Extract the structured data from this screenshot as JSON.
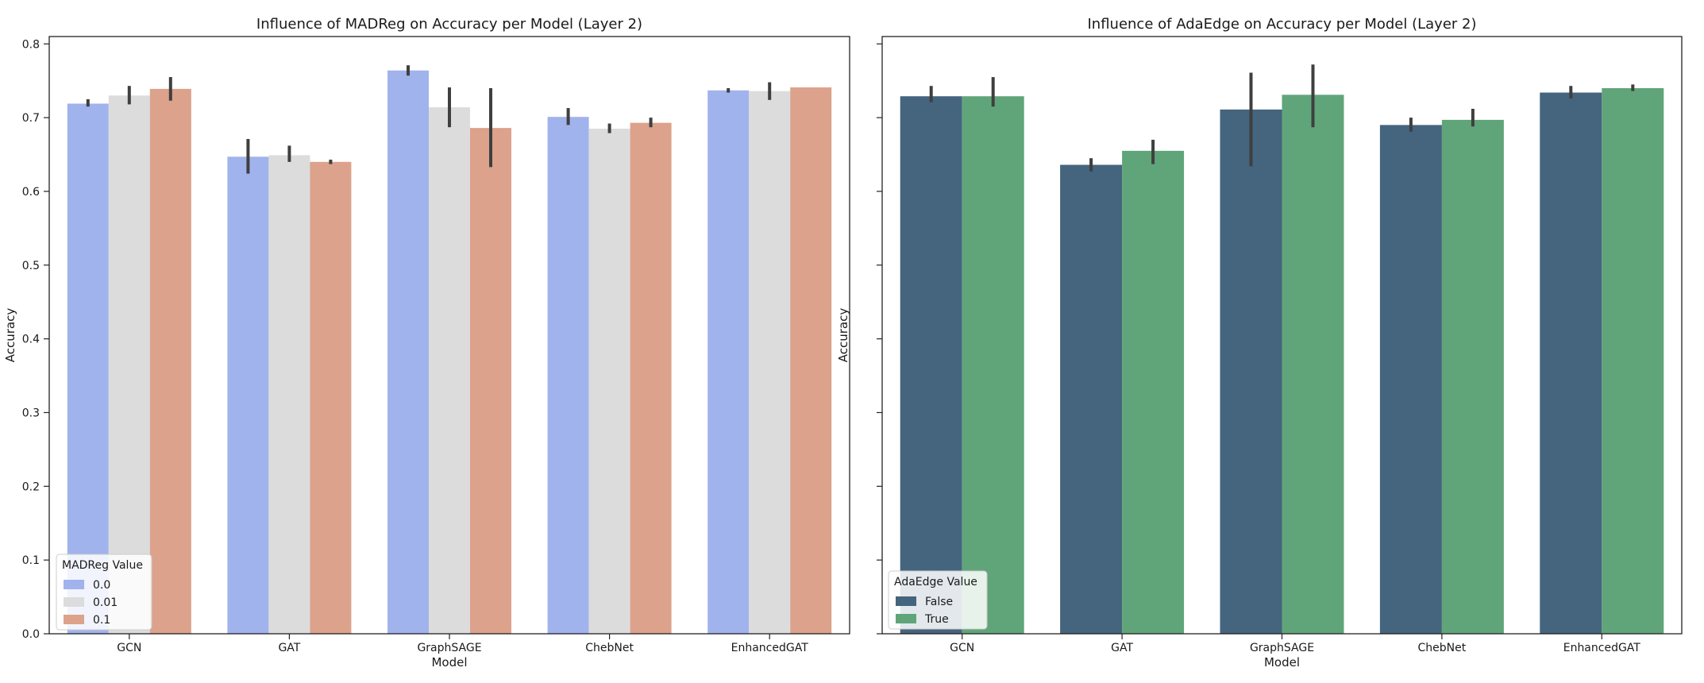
{
  "chart_data": [
    {
      "type": "bar",
      "title": "Influence of MADReg on Accuracy per Model (Layer 2)",
      "xlabel": "Model",
      "ylabel": "Accuracy",
      "ylim": [
        0,
        0.81
      ],
      "yticks": [
        "0.0",
        "0.1",
        "0.2",
        "0.3",
        "0.4",
        "0.5",
        "0.6",
        "0.7",
        "0.8"
      ],
      "categories": [
        "GCN",
        "GAT",
        "GraphSAGE",
        "ChebNet",
        "EnhancedGAT"
      ],
      "legend_title": "MADReg Value",
      "legend_position": "lower-left",
      "series": [
        {
          "name": "0.0",
          "color": "#a1b3ec",
          "values": [
            0.719,
            0.647,
            0.764,
            0.701,
            0.737
          ],
          "err_low": [
            0.715,
            0.624,
            0.757,
            0.69,
            0.734
          ],
          "err_high": [
            0.725,
            0.671,
            0.771,
            0.713,
            0.74
          ]
        },
        {
          "name": "0.01",
          "color": "#dcdcdc",
          "values": [
            0.73,
            0.649,
            0.714,
            0.685,
            0.736
          ],
          "err_low": [
            0.718,
            0.64,
            0.687,
            0.679,
            0.724
          ],
          "err_high": [
            0.743,
            0.662,
            0.741,
            0.692,
            0.748
          ]
        },
        {
          "name": "0.1",
          "color": "#dca28c",
          "values": [
            0.739,
            0.64,
            0.686,
            0.693,
            0.741
          ],
          "err_low": [
            0.723,
            0.637,
            0.633,
            0.687,
            0.741
          ],
          "err_high": [
            0.755,
            0.643,
            0.74,
            0.7,
            0.741
          ]
        }
      ]
    },
    {
      "type": "bar",
      "title": "Influence of AdaEdge on Accuracy per Model (Layer 2)",
      "xlabel": "Model",
      "ylabel": "Accuracy",
      "ylim": [
        0,
        0.81
      ],
      "yticks": [
        "",
        "",
        "",
        "",
        "",
        "",
        "",
        "",
        ""
      ],
      "categories": [
        "GCN",
        "GAT",
        "GraphSAGE",
        "ChebNet",
        "EnhancedGAT"
      ],
      "legend_title": "AdaEdge Value",
      "legend_position": "lower-left",
      "series": [
        {
          "name": "False",
          "color": "#45647e",
          "values": [
            0.729,
            0.636,
            0.711,
            0.69,
            0.734
          ],
          "err_low": [
            0.721,
            0.627,
            0.634,
            0.681,
            0.726
          ],
          "err_high": [
            0.743,
            0.645,
            0.761,
            0.7,
            0.743
          ]
        },
        {
          "name": "True",
          "color": "#60a57a",
          "values": [
            0.729,
            0.655,
            0.731,
            0.697,
            0.74
          ],
          "err_low": [
            0.715,
            0.637,
            0.687,
            0.688,
            0.736
          ],
          "err_high": [
            0.755,
            0.67,
            0.772,
            0.712,
            0.745
          ]
        }
      ]
    }
  ]
}
